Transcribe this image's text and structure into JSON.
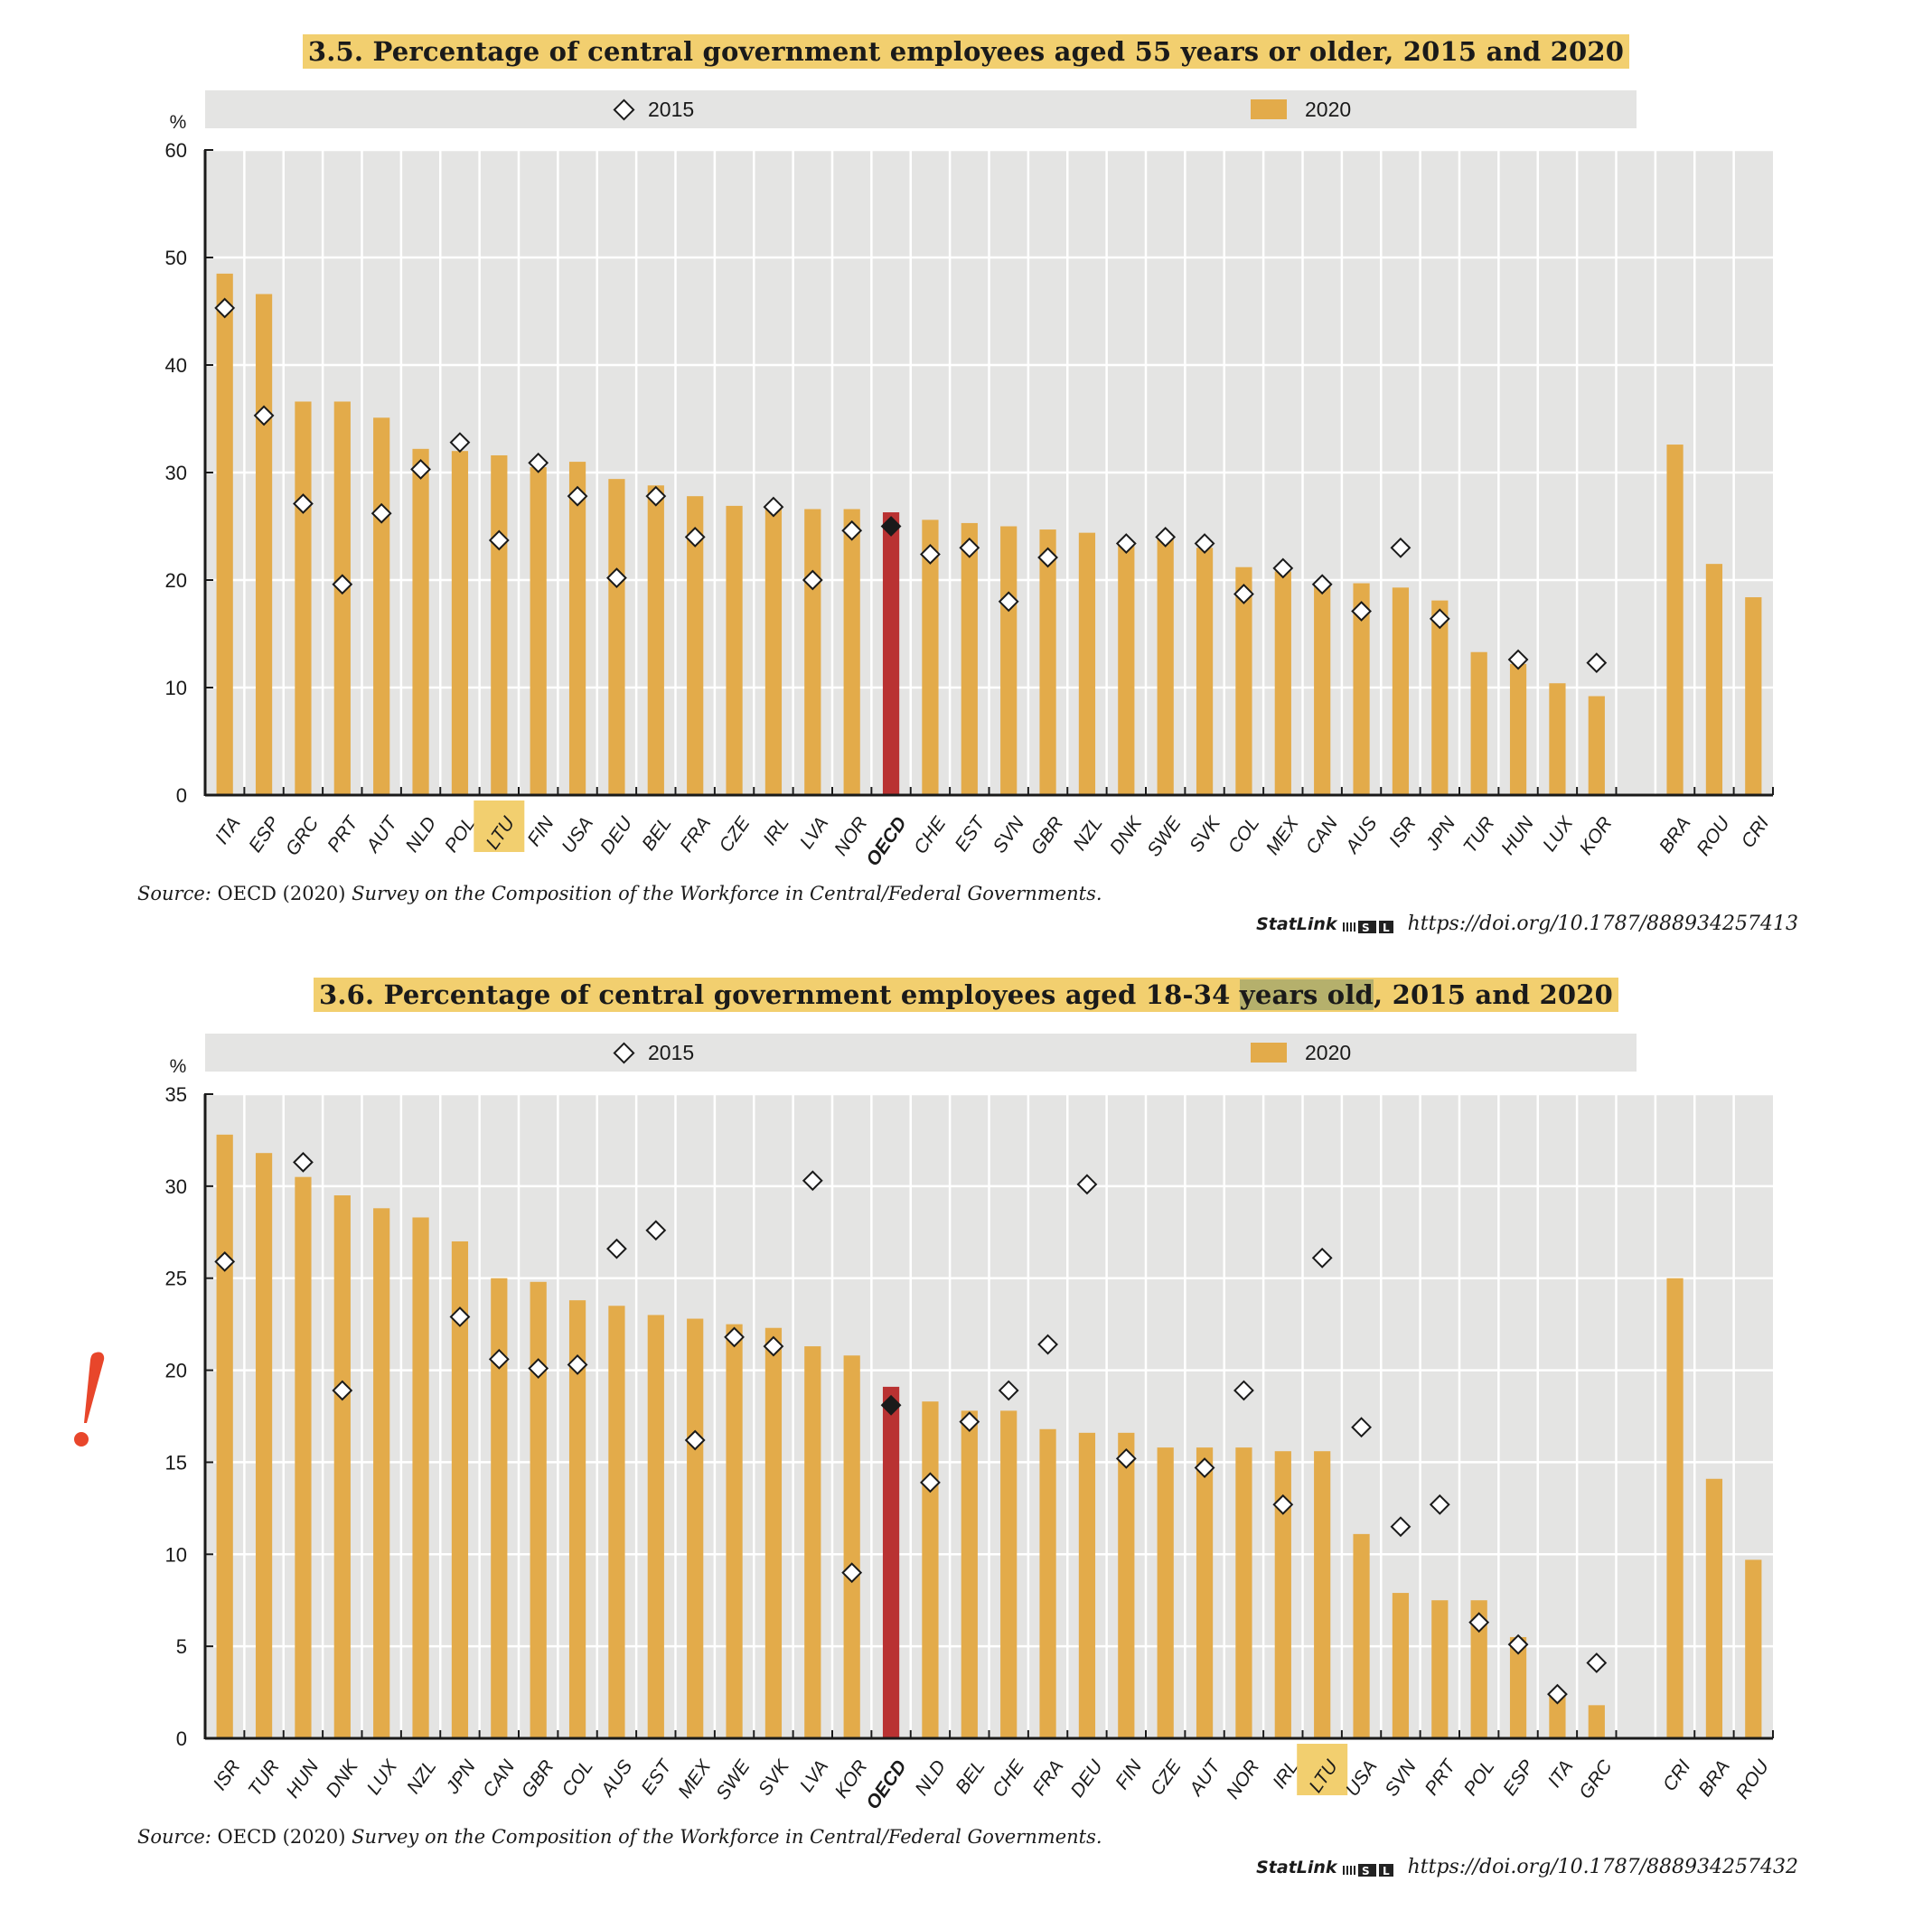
{
  "charts": [
    {
      "title_pre": "3.5. Percentage of central government employees aged 55 years or older, 2015 and 2020",
      "title_hl": "",
      "title_post": "",
      "legend": {
        "series_2015": "2015",
        "series_2020": "2020"
      },
      "unit": "%",
      "source_prefix": "Source:",
      "source_text": " OECD (2020) ",
      "source_title": "Survey on the Composition of the Workforce in Central/Federal Governments.",
      "statlink_label": "StatLink",
      "statlink_url": "https://doi.org/10.1787/888934257413"
    },
    {
      "title_pre": "3.6. Percentage of central government employees aged 18-34 ",
      "title_hl": "years old",
      "title_post": ", 2015 and 2020",
      "legend": {
        "series_2015": "2015",
        "series_2020": "2020"
      },
      "unit": "%",
      "source_prefix": "Source:",
      "source_text": " OECD (2020) ",
      "source_title": "Survey on the Composition of the Workforce in Central/Federal Governments.",
      "statlink_label": "StatLink",
      "statlink_url": "https://doi.org/10.1787/888934257432"
    }
  ],
  "colors": {
    "bar": "#e3ab4a",
    "oecd_bar": "#b93232",
    "plot_bg": "#e4e4e3",
    "grid": "#ffffff",
    "highlight_label": "#f2cf6f",
    "alert": "#e8462b"
  },
  "alert_icon": "exclamation-mark",
  "chart_data": [
    {
      "type": "bar",
      "title": "3.5. Percentage of central government employees aged 55 years or older, 2015 and 2020",
      "xlabel": "",
      "ylabel": "%",
      "ylim": [
        0,
        60
      ],
      "yticks": [
        0,
        10,
        20,
        30,
        40,
        50,
        60
      ],
      "grid": true,
      "legend": "top",
      "highlight_category": "LTU",
      "emphasis_category": "OECD",
      "categories": [
        "ITA",
        "ESP",
        "GRC",
        "PRT",
        "AUT",
        "NLD",
        "POL",
        "LTU",
        "FIN",
        "USA",
        "DEU",
        "BEL",
        "FRA",
        "CZE",
        "IRL",
        "LVA",
        "NOR",
        "OECD",
        "CHE",
        "EST",
        "SVN",
        "GBR",
        "NZL",
        "DNK",
        "SWE",
        "SVK",
        "COL",
        "MEX",
        "CAN",
        "AUS",
        "ISR",
        "JPN",
        "TUR",
        "HUN",
        "LUX",
        "KOR",
        "",
        "BRA",
        "ROU",
        "CRI"
      ],
      "series": [
        {
          "name": "2020",
          "kind": "bar",
          "values": [
            48.5,
            46.6,
            36.6,
            36.6,
            35.1,
            32.2,
            32.0,
            31.6,
            30.5,
            31.0,
            29.4,
            28.8,
            27.8,
            26.9,
            26.9,
            26.6,
            26.6,
            26.3,
            25.6,
            25.3,
            25.0,
            24.7,
            24.4,
            23.3,
            23.8,
            23.0,
            21.2,
            20.8,
            19.6,
            19.7,
            19.3,
            18.1,
            13.3,
            12.2,
            10.4,
            9.2,
            null,
            32.6,
            21.5,
            18.4
          ]
        },
        {
          "name": "2015",
          "kind": "diamond",
          "values": [
            45.3,
            35.3,
            27.1,
            19.6,
            26.2,
            30.3,
            32.8,
            23.7,
            30.9,
            27.8,
            20.2,
            27.8,
            24.0,
            null,
            26.8,
            20.0,
            24.6,
            25.0,
            22.4,
            23.0,
            18.0,
            22.1,
            null,
            23.4,
            24.0,
            23.4,
            18.7,
            21.1,
            19.6,
            17.1,
            23.0,
            16.4,
            null,
            12.6,
            null,
            12.3,
            null,
            null,
            null,
            null
          ]
        }
      ]
    },
    {
      "type": "bar",
      "title": "3.6. Percentage of central government employees aged 18-34 years old, 2015 and 2020",
      "xlabel": "",
      "ylabel": "%",
      "ylim": [
        0,
        35
      ],
      "yticks": [
        0,
        5,
        10,
        15,
        20,
        25,
        30,
        35
      ],
      "grid": true,
      "legend": "top",
      "highlight_category": "LTU",
      "emphasis_category": "OECD",
      "categories": [
        "ISR",
        "TUR",
        "HUN",
        "DNK",
        "LUX",
        "NZL",
        "JPN",
        "CAN",
        "GBR",
        "COL",
        "AUS",
        "EST",
        "MEX",
        "SWE",
        "SVK",
        "LVA",
        "KOR",
        "OECD",
        "NLD",
        "BEL",
        "CHE",
        "FRA",
        "DEU",
        "FIN",
        "CZE",
        "AUT",
        "NOR",
        "IRL",
        "LTU",
        "USA",
        "SVN",
        "PRT",
        "POL",
        "ESP",
        "ITA",
        "GRC",
        "",
        "CRI",
        "BRA",
        "ROU"
      ],
      "series": [
        {
          "name": "2020",
          "kind": "bar",
          "values": [
            32.8,
            31.8,
            30.5,
            29.5,
            28.8,
            28.3,
            27.0,
            25.0,
            24.8,
            23.8,
            23.5,
            23.0,
            22.8,
            22.5,
            22.3,
            21.3,
            20.8,
            19.1,
            18.3,
            17.8,
            17.8,
            16.8,
            16.6,
            16.6,
            15.8,
            15.8,
            15.8,
            15.6,
            15.6,
            11.1,
            7.9,
            7.5,
            7.5,
            5.5,
            2.3,
            1.8,
            null,
            25.0,
            14.1,
            9.7
          ]
        },
        {
          "name": "2015",
          "kind": "diamond",
          "values": [
            25.9,
            null,
            31.3,
            18.9,
            null,
            null,
            22.9,
            20.6,
            20.1,
            20.3,
            26.6,
            27.6,
            16.2,
            21.8,
            21.3,
            30.3,
            9.0,
            18.1,
            13.9,
            17.2,
            18.9,
            21.4,
            30.1,
            15.2,
            null,
            14.7,
            18.9,
            12.7,
            26.1,
            16.9,
            11.5,
            12.7,
            6.3,
            5.1,
            2.4,
            4.1,
            null,
            null,
            null,
            null
          ]
        }
      ]
    }
  ]
}
